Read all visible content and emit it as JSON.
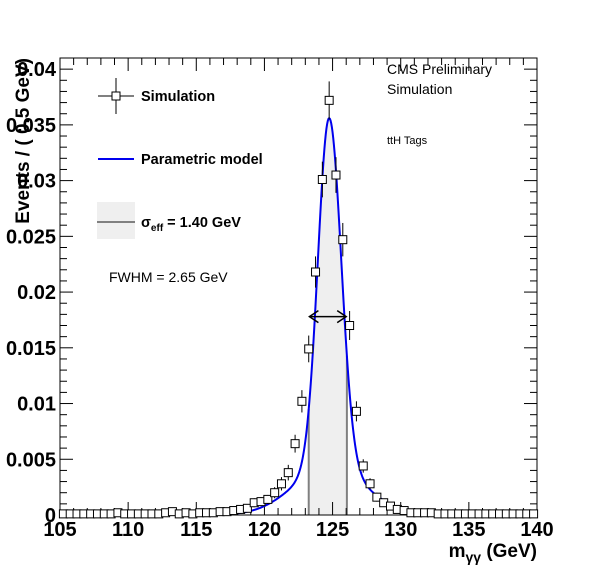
{
  "chart_data": {
    "type": "scatter",
    "xlabel": "m",
    "xlabel_sub": "γγ",
    "xlabel_unit": " (GeV)",
    "ylabel": "Events / ( 0.5 GeV)",
    "xlim": [
      105,
      140
    ],
    "ylim": [
      0,
      0.041
    ],
    "x_ticks": [
      105,
      110,
      115,
      120,
      125,
      130,
      135,
      140
    ],
    "x_tick_labels": [
      "105",
      "110",
      "115",
      "120",
      "125",
      "130",
      "135",
      "140"
    ],
    "y_ticks": [
      0,
      0.005,
      0.01,
      0.015,
      0.02,
      0.025,
      0.03,
      0.035,
      0.04
    ],
    "y_tick_labels": [
      "0",
      "0.005",
      "0.01",
      "0.015",
      "0.02",
      "0.025",
      "0.03",
      "0.035",
      "0.04"
    ],
    "annotations": {
      "experiment": "CMS Preliminary",
      "sample": "Simulation",
      "category": "ttH Tags",
      "fwhm": "FWHM = 2.65 GeV"
    },
    "legend": {
      "simulation": "Simulation",
      "model": "Parametric model",
      "sigma_symbol": "σ",
      "sigma_sub": "eff",
      "sigma_value": " = 1.40 GeV"
    },
    "colors": {
      "model": "#0000ee",
      "band_fill": "#efefef",
      "band_edge": "#808080",
      "points": "#000000"
    },
    "sigma_eff_band": [
      123.25,
      126.05
    ],
    "fwhm_range": [
      123.3,
      126.0
    ],
    "fwhm_height": 0.0178,
    "model": {
      "peak_mass": 124.75,
      "peak_height": 0.0356,
      "core_width_left": 0.82,
      "core_width_right": 0.88,
      "tail_fraction": 0.12,
      "tail_width": 2.6
    },
    "series": [
      {
        "name": "Simulation",
        "x": [
          105.25,
          105.75,
          106.25,
          106.75,
          107.25,
          107.75,
          108.25,
          108.75,
          109.25,
          109.75,
          110.25,
          110.75,
          111.25,
          111.75,
          112.25,
          112.75,
          113.25,
          113.75,
          114.25,
          114.75,
          115.25,
          115.75,
          116.25,
          116.75,
          117.25,
          117.75,
          118.25,
          118.75,
          119.25,
          119.75,
          120.25,
          120.75,
          121.25,
          121.75,
          122.25,
          122.75,
          123.25,
          123.75,
          124.25,
          124.75,
          125.25,
          125.75,
          126.25,
          126.75,
          127.25,
          127.75,
          128.25,
          128.75,
          129.25,
          129.75,
          130.25,
          130.75,
          131.25,
          131.75,
          132.25,
          132.75,
          133.25,
          133.75,
          134.25,
          134.75,
          135.25,
          135.75,
          136.25,
          136.75,
          137.25,
          137.75,
          138.25,
          138.75,
          139.25,
          139.75
        ],
        "y": [
          0.0001,
          0.0001,
          0.0001,
          0.0001,
          0.0001,
          0.0001,
          0.0001,
          0.0001,
          0.0002,
          0.0001,
          0.0001,
          0.0001,
          0.0001,
          0.0001,
          0.0001,
          0.0002,
          0.0003,
          0.0001,
          0.0002,
          0.0001,
          0.0002,
          0.0002,
          0.0002,
          0.0003,
          0.0003,
          0.0004,
          0.0005,
          0.0006,
          0.0011,
          0.0012,
          0.0014,
          0.002,
          0.0028,
          0.0038,
          0.0064,
          0.0102,
          0.0149,
          0.0218,
          0.0301,
          0.0372,
          0.0305,
          0.0247,
          0.017,
          0.0093,
          0.0044,
          0.0028,
          0.0016,
          0.0011,
          0.0008,
          0.0005,
          0.0004,
          0.0002,
          0.0002,
          0.0002,
          0.0002,
          0.0001,
          0.0001,
          0.0001,
          0.0001,
          0.0001,
          0.0001,
          0.0001,
          0.0001,
          0.0001,
          0.0001,
          0.0001,
          0.0001,
          0.0001,
          0.0001,
          0.0001
        ],
        "err": [
          0.0002,
          0.0002,
          0.0002,
          0.0002,
          0.0002,
          0.0002,
          0.0002,
          0.0002,
          0.0002,
          0.0002,
          0.0002,
          0.0002,
          0.0002,
          0.0002,
          0.0002,
          0.0002,
          0.0002,
          0.0002,
          0.0002,
          0.0002,
          0.0002,
          0.0002,
          0.0002,
          0.0002,
          0.0002,
          0.0002,
          0.0003,
          0.0003,
          0.0004,
          0.0004,
          0.0004,
          0.0005,
          0.0006,
          0.0007,
          0.0008,
          0.001,
          0.0012,
          0.0014,
          0.0016,
          0.0017,
          0.0016,
          0.0015,
          0.0013,
          0.0009,
          0.0006,
          0.0005,
          0.0004,
          0.0003,
          0.0003,
          0.0003,
          0.0002,
          0.0002,
          0.0002,
          0.0002,
          0.0002,
          0.0002,
          0.0002,
          0.0002,
          0.0002,
          0.0002,
          0.0002,
          0.0002,
          0.0002,
          0.0002,
          0.0002,
          0.0002,
          0.0002,
          0.0002,
          0.0002,
          0.0002
        ]
      }
    ]
  }
}
